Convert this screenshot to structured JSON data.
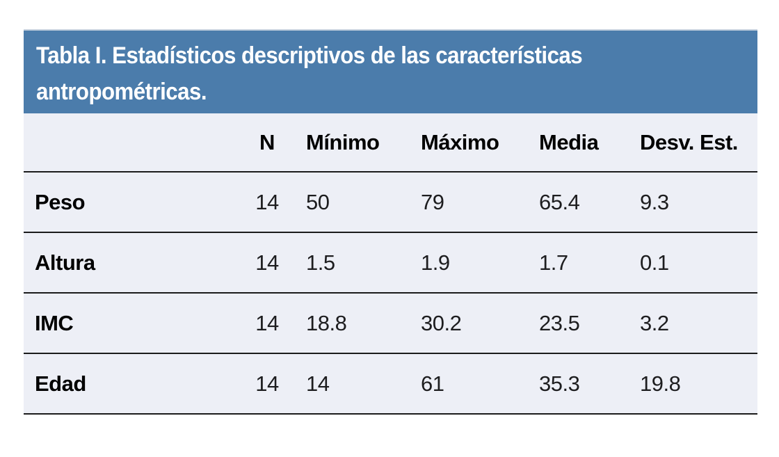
{
  "table": {
    "title_line1": "Tabla I. Estadísticos descriptivos de las características",
    "title_line2": "antropométricas.",
    "column_headers": [
      "N",
      "Mínimo",
      "Máximo",
      "Media",
      "Desv. Est."
    ],
    "rows": [
      {
        "label": "Peso",
        "n": "14",
        "min": "50",
        "max": "79",
        "media": "65.4",
        "desv": "9.3"
      },
      {
        "label": "Altura",
        "n": "14",
        "min": "1.5",
        "max": "1.9",
        "media": "1.7",
        "desv": "0.1"
      },
      {
        "label": "IMC",
        "n": "14",
        "min": "18.8",
        "max": "30.2",
        "media": "23.5",
        "desv": "3.2"
      },
      {
        "label": "Edad",
        "n": "14",
        "min": "14",
        "max": "61",
        "media": "35.3",
        "desv": "19.8"
      }
    ]
  },
  "colors": {
    "title_band": "#4b7cab",
    "title_band_top_border": "#c5d0de",
    "title_text": "#ffffff",
    "body_background": "#edeff6",
    "separator_line": "#1b1b1b",
    "header_text": "#000000",
    "value_text": "#1d1d1f",
    "page_background": "#ffffff"
  }
}
